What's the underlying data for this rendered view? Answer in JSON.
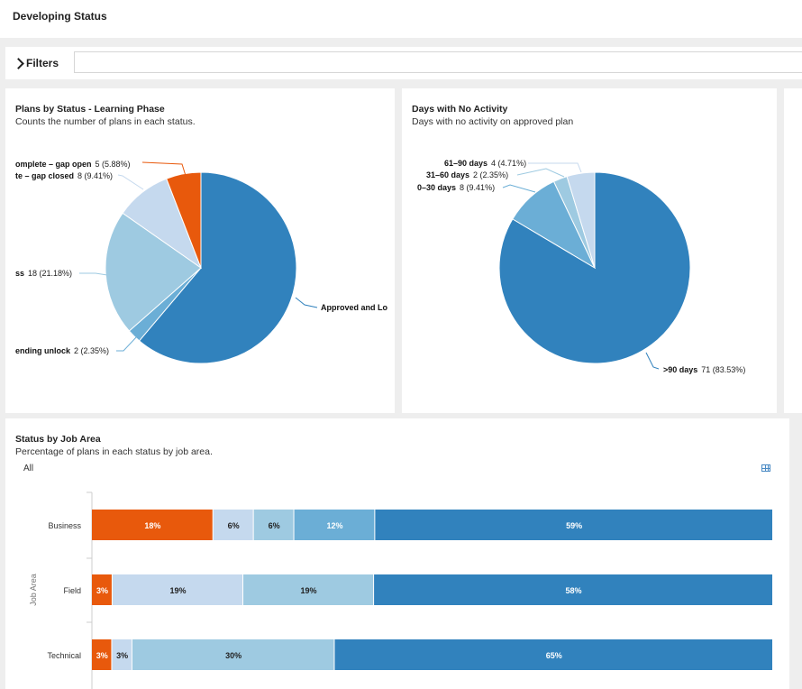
{
  "page": {
    "title": "Developing Status"
  },
  "filters": {
    "label": "Filters",
    "value": ""
  },
  "cards": {
    "plans": {
      "title": "Plans by Status - Learning Phase",
      "subtitle": "Counts the number of plans in each status.",
      "labels": [
        {
          "name": "omplete – gap open",
          "val": "5 (5.88%)"
        },
        {
          "name": "te – gap closed",
          "val": "8 (9.41%)"
        },
        {
          "name": "ss",
          "val": "18 (21.18%)"
        },
        {
          "name": "ending unlock",
          "val": "2 (2.35%)"
        },
        {
          "name": "Approved and Lo",
          "val": ""
        }
      ]
    },
    "days": {
      "title": "Days with No Activity",
      "subtitle": "Days with no activity on approved plan",
      "labels": [
        {
          "name": "61–90 days",
          "val": "4 (4.71%)"
        },
        {
          "name": "31–60 days",
          "val": "2 (2.35%)"
        },
        {
          "name": "0–30 days",
          "val": "8 (9.41%)"
        },
        {
          "name": ">90 days",
          "val": "71 (83.53%)"
        }
      ]
    },
    "jobarea": {
      "title": "Status by Job Area",
      "subtitle": "Percentage of plans in each status by job area.",
      "filter_value": "All",
      "ylabel": "Job Area"
    }
  },
  "colors": {
    "orange": "#e8590c",
    "light": "#c5d9ee",
    "mid": "#9ecae1",
    "steel": "#6baed6",
    "blue": "#3182bd"
  },
  "chart_data": [
    {
      "type": "pie",
      "title": "Plans by Status - Learning Phase",
      "slices": [
        {
          "label": "Approved and Lo",
          "value": 52,
          "color": "#3182bd"
        },
        {
          "label": "ending unlock",
          "value": 2,
          "color": "#6baed6"
        },
        {
          "label": "ss",
          "value": 18,
          "color": "#9ecae1"
        },
        {
          "label": "te – gap closed",
          "value": 8,
          "color": "#c5d9ee"
        },
        {
          "label": "omplete – gap open",
          "value": 5,
          "color": "#e8590c"
        }
      ]
    },
    {
      "type": "pie",
      "title": "Days with No Activity",
      "slices": [
        {
          "label": ">90 days",
          "value": 71,
          "color": "#3182bd"
        },
        {
          "label": "0–30 days",
          "value": 8,
          "color": "#6baed6"
        },
        {
          "label": "31–60 days",
          "value": 2,
          "color": "#9ecae1"
        },
        {
          "label": "61–90 days",
          "value": 4,
          "color": "#c5d9ee"
        }
      ]
    },
    {
      "type": "bar",
      "title": "Status by Job Area",
      "ylabel": "Job Area",
      "categories": [
        "Business",
        "Field",
        "Technical"
      ],
      "series": [
        {
          "values": [
            18,
            3,
            3
          ],
          "color": "#e8590c"
        },
        {
          "values": [
            6,
            19,
            3
          ],
          "color": "#c5d9ee"
        },
        {
          "values": [
            6,
            19,
            30
          ],
          "color": "#9ecae1"
        },
        {
          "values": [
            12,
            0,
            0
          ],
          "color": "#6baed6"
        },
        {
          "values": [
            59,
            58,
            65
          ],
          "color": "#3182bd"
        }
      ]
    }
  ]
}
